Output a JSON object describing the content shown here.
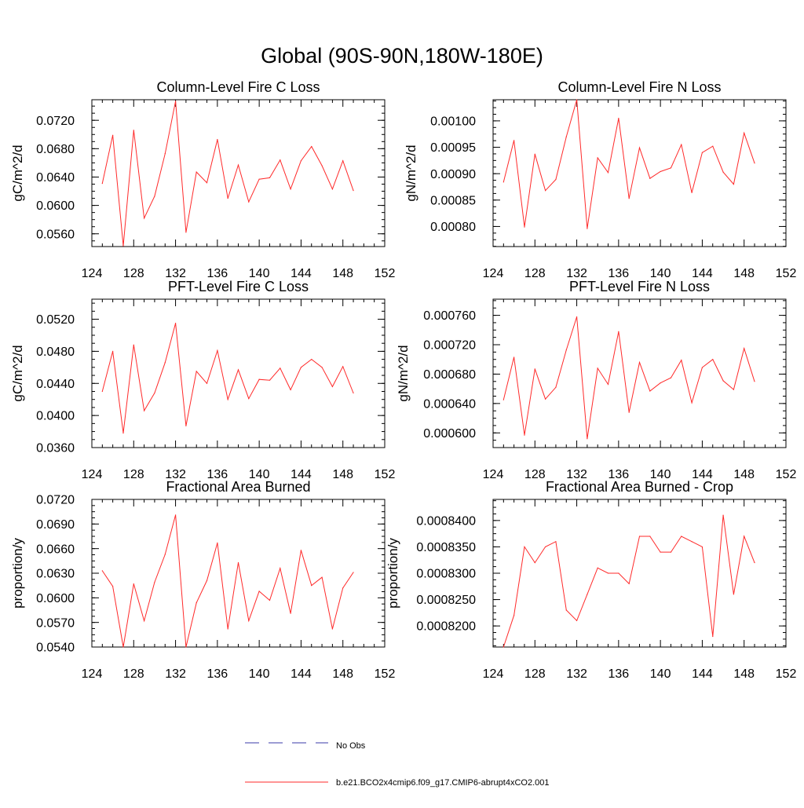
{
  "page": {
    "title": "Global (90S-90N,180W-180E)"
  },
  "legend": [
    {
      "label": "No Obs",
      "color": "#3a3aa8",
      "dashed": true
    },
    {
      "label": "b.e21.BCO2x4cmip6.f09_g17.CMIP6-abrupt4xCO2.001",
      "color": "#ff2a2a",
      "dashed": false
    }
  ],
  "chart_data": [
    {
      "type": "line",
      "title": "Column-Level Fire C Loss",
      "ylabel": "gC/m^2/d",
      "xlabel": "",
      "xlim": [
        124,
        152
      ],
      "ylim": [
        0.0542,
        0.0749
      ],
      "xticks": [
        "124",
        "128",
        "132",
        "136",
        "140",
        "144",
        "148",
        "152"
      ],
      "yticks": [
        {
          "v": 0.056,
          "t": "0.0560"
        },
        {
          "v": 0.06,
          "t": "0.0600"
        },
        {
          "v": 0.064,
          "t": "0.0640"
        },
        {
          "v": 0.068,
          "t": "0.0680"
        },
        {
          "v": 0.072,
          "t": "0.0720"
        }
      ],
      "series": [
        {
          "name": "b.e21.BCO2x4cmip6.f09_g17.CMIP6-abrupt4xCO2.001",
          "color": "#ff2a2a",
          "x": [
            125,
            126,
            127,
            128,
            129,
            130,
            131,
            132,
            133,
            134,
            135,
            136,
            137,
            138,
            139,
            140,
            141,
            142,
            143,
            144,
            145,
            146,
            147,
            148,
            149
          ],
          "values": [
            0.0631,
            0.0699,
            0.0543,
            0.0706,
            0.0582,
            0.0613,
            0.0673,
            0.0747,
            0.0562,
            0.0647,
            0.0632,
            0.0693,
            0.061,
            0.0657,
            0.0605,
            0.0637,
            0.0639,
            0.0664,
            0.0623,
            0.0663,
            0.0683,
            0.0656,
            0.0623,
            0.0663,
            0.0621
          ]
        }
      ]
    },
    {
      "type": "line",
      "title": "Column-Level Fire N Loss",
      "ylabel": "gN/m^2/d",
      "xlabel": "",
      "xlim": [
        124,
        152
      ],
      "ylim": [
        0.000762,
        0.00104
      ],
      "xticks": [
        "124",
        "128",
        "132",
        "136",
        "140",
        "144",
        "148",
        "152"
      ],
      "yticks": [
        {
          "v": 0.0008,
          "t": "0.00080"
        },
        {
          "v": 0.00085,
          "t": "0.00085"
        },
        {
          "v": 0.0009,
          "t": "0.00090"
        },
        {
          "v": 0.00095,
          "t": "0.00095"
        },
        {
          "v": 0.001,
          "t": "0.00100"
        }
      ],
      "series": [
        {
          "name": "b.e21.BCO2x4cmip6.f09_g17.CMIP6-abrupt4xCO2.001",
          "color": "#ff2a2a",
          "x": [
            125,
            126,
            127,
            128,
            129,
            130,
            131,
            132,
            133,
            134,
            135,
            136,
            137,
            138,
            139,
            140,
            141,
            142,
            143,
            144,
            145,
            146,
            147,
            148,
            149
          ],
          "values": [
            0.000884,
            0.000963,
            0.000799,
            0.000937,
            0.000868,
            0.000889,
            0.00097,
            0.00104,
            0.000796,
            0.00093,
            0.000902,
            0.001005,
            0.000853,
            0.000949,
            0.000891,
            0.000904,
            0.000911,
            0.000955,
            0.000864,
            0.00094,
            0.000952,
            0.000903,
            0.00088,
            0.000977,
            0.00092
          ]
        }
      ]
    },
    {
      "type": "line",
      "title": "PFT-Level Fire C Loss",
      "ylabel": "gC/m^2/d",
      "xlabel": "",
      "xlim": [
        124,
        152
      ],
      "ylim": [
        0.036,
        0.0545
      ],
      "xticks": [
        "124",
        "128",
        "132",
        "136",
        "140",
        "144",
        "148",
        "152"
      ],
      "yticks": [
        {
          "v": 0.036,
          "t": "0.0360"
        },
        {
          "v": 0.04,
          "t": "0.0400"
        },
        {
          "v": 0.044,
          "t": "0.0440"
        },
        {
          "v": 0.048,
          "t": "0.0480"
        },
        {
          "v": 0.052,
          "t": "0.0520"
        }
      ],
      "series": [
        {
          "name": "b.e21.BCO2x4cmip6.f09_g17.CMIP6-abrupt4xCO2.001",
          "color": "#ff2a2a",
          "x": [
            125,
            126,
            127,
            128,
            129,
            130,
            131,
            132,
            133,
            134,
            135,
            136,
            137,
            138,
            139,
            140,
            141,
            142,
            143,
            144,
            145,
            146,
            147,
            148,
            149
          ],
          "values": [
            0.043,
            0.048,
            0.0378,
            0.0488,
            0.0406,
            0.0428,
            0.0466,
            0.0515,
            0.0387,
            0.0455,
            0.044,
            0.0481,
            0.042,
            0.0457,
            0.0421,
            0.0445,
            0.0444,
            0.0459,
            0.0432,
            0.046,
            0.047,
            0.046,
            0.0436,
            0.0461,
            0.0428
          ]
        }
      ]
    },
    {
      "type": "line",
      "title": "PFT-Level Fire N Loss",
      "ylabel": "gN/m^2/d",
      "xlabel": "",
      "xlim": [
        124,
        152
      ],
      "ylim": [
        0.00058,
        0.000782
      ],
      "xticks": [
        "124",
        "128",
        "132",
        "136",
        "140",
        "144",
        "148",
        "152"
      ],
      "yticks": [
        {
          "v": 0.0006,
          "t": "0.000600"
        },
        {
          "v": 0.00064,
          "t": "0.000640"
        },
        {
          "v": 0.00068,
          "t": "0.000680"
        },
        {
          "v": 0.00072,
          "t": "0.000720"
        },
        {
          "v": 0.00076,
          "t": "0.000760"
        }
      ],
      "series": [
        {
          "name": "b.e21.BCO2x4cmip6.f09_g17.CMIP6-abrupt4xCO2.001",
          "color": "#ff2a2a",
          "x": [
            125,
            126,
            127,
            128,
            129,
            130,
            131,
            132,
            133,
            134,
            135,
            136,
            137,
            138,
            139,
            140,
            141,
            142,
            143,
            144,
            145,
            146,
            147,
            148,
            149
          ],
          "values": [
            0.000645,
            0.000703,
            0.000597,
            0.000687,
            0.000646,
            0.000662,
            0.000713,
            0.000758,
            0.000592,
            0.000688,
            0.000666,
            0.000738,
            0.000628,
            0.000696,
            0.000657,
            0.000668,
            0.000675,
            0.000699,
            0.000641,
            0.000689,
            0.0007,
            0.000671,
            0.000659,
            0.000715,
            0.00067
          ]
        }
      ]
    },
    {
      "type": "line",
      "title": "Fractional Area Burned",
      "ylabel": "proportion/y",
      "xlabel": "",
      "xlim": [
        124,
        152
      ],
      "ylim": [
        0.054,
        0.072
      ],
      "xticks": [
        "124",
        "128",
        "132",
        "136",
        "140",
        "144",
        "148",
        "152"
      ],
      "yticks": [
        {
          "v": 0.054,
          "t": "0.0540"
        },
        {
          "v": 0.057,
          "t": "0.0570"
        },
        {
          "v": 0.06,
          "t": "0.0600"
        },
        {
          "v": 0.063,
          "t": "0.0630"
        },
        {
          "v": 0.066,
          "t": "0.0660"
        },
        {
          "v": 0.069,
          "t": "0.0690"
        },
        {
          "v": 0.072,
          "t": "0.0720"
        }
      ],
      "series": [
        {
          "name": "b.e21.BCO2x4cmip6.f09_g17.CMIP6-abrupt4xCO2.001",
          "color": "#ff2a2a",
          "x": [
            125,
            126,
            127,
            128,
            129,
            130,
            131,
            132,
            133,
            134,
            135,
            136,
            137,
            138,
            139,
            140,
            141,
            142,
            143,
            144,
            145,
            146,
            147,
            148,
            149
          ],
          "values": [
            0.0633,
            0.0614,
            0.054,
            0.0617,
            0.0572,
            0.0619,
            0.0653,
            0.0701,
            0.054,
            0.0594,
            0.0621,
            0.0667,
            0.0562,
            0.0643,
            0.0572,
            0.0608,
            0.0597,
            0.0636,
            0.0581,
            0.0658,
            0.0615,
            0.0625,
            0.0562,
            0.0612,
            0.0631
          ]
        }
      ]
    },
    {
      "type": "line",
      "title": "Fractional Area Burned - Crop",
      "ylabel": "proportion/y",
      "xlabel": "",
      "xlim": [
        124,
        152
      ],
      "ylim": [
        0.000816,
        0.000844
      ],
      "xticks": [
        "124",
        "128",
        "132",
        "136",
        "140",
        "144",
        "148",
        "152"
      ],
      "yticks": [
        {
          "v": 0.00082,
          "t": "0.0008200"
        },
        {
          "v": 0.000825,
          "t": "0.0008250"
        },
        {
          "v": 0.00083,
          "t": "0.0008300"
        },
        {
          "v": 0.000835,
          "t": "0.0008350"
        },
        {
          "v": 0.00084,
          "t": "0.0008400"
        }
      ],
      "series": [
        {
          "name": "b.e21.BCO2x4cmip6.f09_g17.CMIP6-abrupt4xCO2.001",
          "color": "#ff2a2a",
          "x": [
            125,
            126,
            127,
            128,
            129,
            130,
            131,
            132,
            133,
            134,
            135,
            136,
            137,
            138,
            139,
            140,
            141,
            142,
            143,
            144,
            145,
            146,
            147,
            148,
            149
          ],
          "values": [
            0.000816,
            0.000822,
            0.000835,
            0.000832,
            0.000835,
            0.000836,
            0.000823,
            0.000821,
            0.000826,
            0.000831,
            0.00083,
            0.00083,
            0.000828,
            0.000837,
            0.000837,
            0.000834,
            0.000834,
            0.000837,
            0.000836,
            0.000835,
            0.000818,
            0.000841,
            0.000826,
            0.000837,
            0.000832
          ]
        }
      ]
    }
  ]
}
